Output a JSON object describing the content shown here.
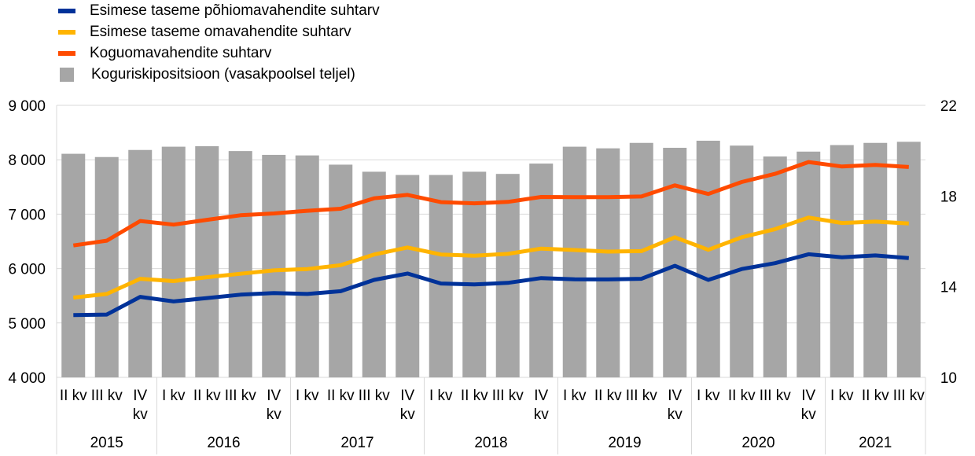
{
  "chart_data": {
    "type": "bar+line",
    "categories": [
      "II kv",
      "III kv",
      "IV kv",
      "I kv",
      "II kv",
      "III kv",
      "IV kv",
      "I kv",
      "II kv",
      "III kv",
      "IV kv",
      "I kv",
      "II kv",
      "III kv",
      "IV kv",
      "I kv",
      "II kv",
      "III kv",
      "IV kv",
      "I kv",
      "II kv",
      "III kv",
      "IV kv",
      "I kv",
      "II kv",
      "III kv"
    ],
    "years": [
      {
        "label": "2015",
        "count": 3
      },
      {
        "label": "2016",
        "count": 4
      },
      {
        "label": "2017",
        "count": 4
      },
      {
        "label": "2018",
        "count": 4
      },
      {
        "label": "2019",
        "count": 4
      },
      {
        "label": "2020",
        "count": 4
      },
      {
        "label": "2021",
        "count": 3
      }
    ],
    "bars": {
      "name": "Koguriskipositsioon (vasakpoolsel teljel)",
      "axis": "left",
      "color": "#a6a6a6",
      "values": [
        8110,
        8050,
        8180,
        8240,
        8250,
        8160,
        8090,
        8080,
        7910,
        7780,
        7720,
        7720,
        7780,
        7740,
        7930,
        8240,
        8210,
        8310,
        8220,
        8350,
        8260,
        8060,
        8150,
        8270,
        8310,
        8330
      ]
    },
    "series": [
      {
        "name": "Esimese taseme põhiomavahendite suhtarv",
        "axis": "right",
        "color": "#003299",
        "values": [
          12.75,
          12.77,
          13.55,
          13.35,
          13.5,
          13.65,
          13.72,
          13.68,
          13.8,
          14.3,
          14.58,
          14.14,
          14.1,
          14.17,
          14.38,
          14.33,
          14.32,
          14.35,
          14.92,
          14.3,
          14.78,
          15.04,
          15.43,
          15.3,
          15.38,
          15.26
        ]
      },
      {
        "name": "Esimese taseme omavahendite suhtarv",
        "axis": "right",
        "color": "#ffb400",
        "values": [
          13.52,
          13.68,
          14.35,
          14.25,
          14.42,
          14.57,
          14.72,
          14.78,
          14.95,
          15.42,
          15.73,
          15.42,
          15.37,
          15.45,
          15.68,
          15.62,
          15.55,
          15.57,
          16.18,
          15.63,
          16.18,
          16.54,
          17.05,
          16.81,
          16.87,
          16.79
        ]
      },
      {
        "name": "Koguomavahendite suhtarv",
        "axis": "right",
        "color": "#ff4b00",
        "values": [
          15.82,
          16.03,
          16.9,
          16.74,
          16.95,
          17.15,
          17.23,
          17.35,
          17.44,
          17.9,
          18.05,
          17.73,
          17.68,
          17.74,
          17.96,
          17.95,
          17.95,
          17.98,
          18.47,
          18.09,
          18.62,
          18.98,
          19.5,
          19.3,
          19.37,
          19.28
        ]
      }
    ],
    "y_left": {
      "min": 4000,
      "max": 9000,
      "ticks": [
        "4 000",
        "5 000",
        "6 000",
        "7 000",
        "8 000",
        "9 000"
      ]
    },
    "y_right": {
      "min": 10,
      "max": 22,
      "ticks": [
        "10",
        "14",
        "18",
        "22"
      ]
    },
    "grid": true,
    "legend_position": "top-left"
  }
}
